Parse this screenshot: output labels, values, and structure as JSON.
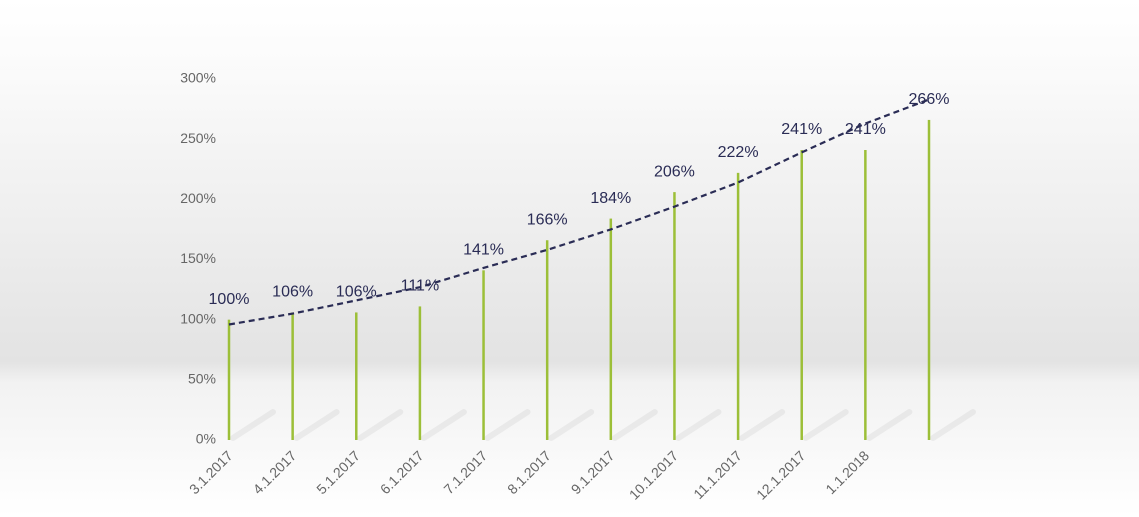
{
  "chart_data": {
    "type": "bar",
    "categories": [
      "3.1.2017",
      "4.1.2017",
      "5.1.2017",
      "6.1.2017",
      "7.1.2017",
      "8.1.2017",
      "9.1.2017",
      "10.1.2017",
      "11.1.2017",
      "12.1.2017",
      "1.1.2018",
      null
    ],
    "values": [
      100,
      106,
      106,
      111,
      141,
      166,
      184,
      206,
      222,
      241,
      241,
      266
    ],
    "value_labels": [
      "100%",
      "106%",
      "106%",
      "111%",
      "141%",
      "166%",
      "184%",
      "206%",
      "222%",
      "241%",
      "241%",
      "266%"
    ],
    "color": "#9cbf38",
    "trendline": {
      "color": "#2a2c55",
      "dashed": true,
      "values": [
        96,
        105,
        116,
        127,
        143,
        158,
        175,
        194,
        214,
        239,
        263,
        283
      ]
    },
    "ylim": [
      0,
      300
    ],
    "yticks": [
      {
        "value": 0,
        "label": "0%"
      },
      {
        "value": 50,
        "label": "50%"
      },
      {
        "value": 100,
        "label": "100%"
      },
      {
        "value": 150,
        "label": "150%"
      },
      {
        "value": 200,
        "label": "200%"
      },
      {
        "value": 250,
        "label": "250%"
      },
      {
        "value": 300,
        "label": "300%"
      }
    ],
    "grid": false
  }
}
